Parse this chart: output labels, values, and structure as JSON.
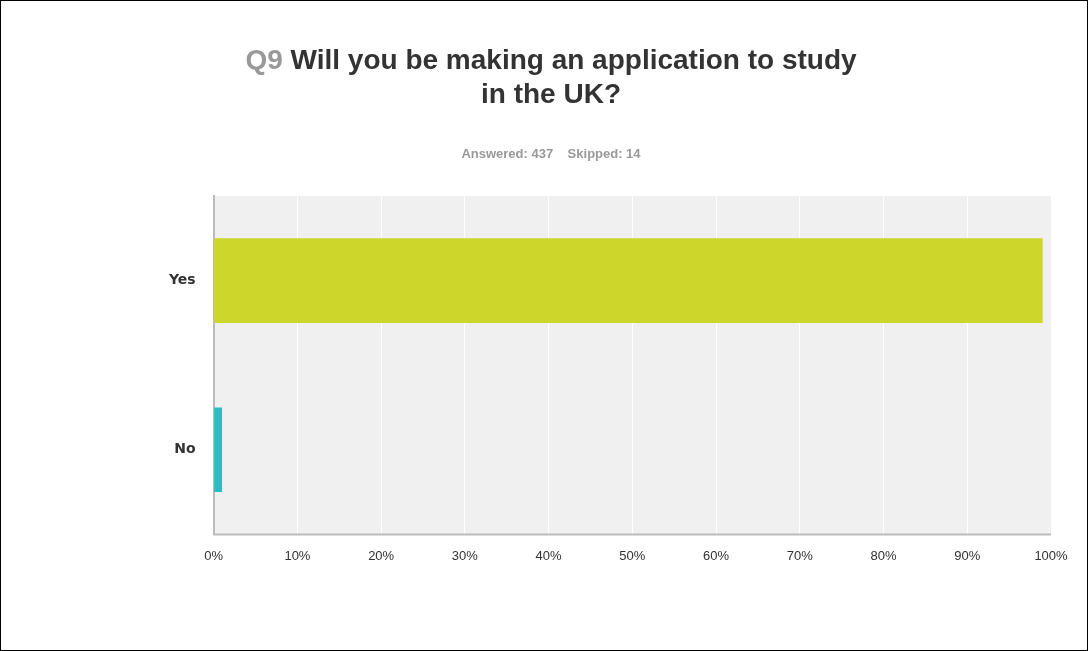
{
  "chart_data": {
    "type": "bar",
    "orientation": "horizontal",
    "title": "Q9 Will you be making an application to study in the UK?",
    "subtitle": "Answered: 437    Skipped: 14",
    "categories": [
      "Yes",
      "No"
    ],
    "values": [
      99,
      1
    ],
    "colors": [
      "#cdd62a",
      "#2cbcc4"
    ],
    "xlim": [
      0,
      100
    ],
    "xticks": [
      {
        "value": 0,
        "label": "0%"
      },
      {
        "value": 10,
        "label": "10%"
      },
      {
        "value": 20,
        "label": "20%"
      },
      {
        "value": 30,
        "label": "30%"
      },
      {
        "value": 40,
        "label": "40%"
      },
      {
        "value": 50,
        "label": "50%"
      },
      {
        "value": 60,
        "label": "60%"
      },
      {
        "value": 70,
        "label": "70%"
      },
      {
        "value": 80,
        "label": "80%"
      },
      {
        "value": 90,
        "label": "90%"
      },
      {
        "value": 100,
        "label": "100%"
      }
    ],
    "grid": "x",
    "legend": false
  }
}
